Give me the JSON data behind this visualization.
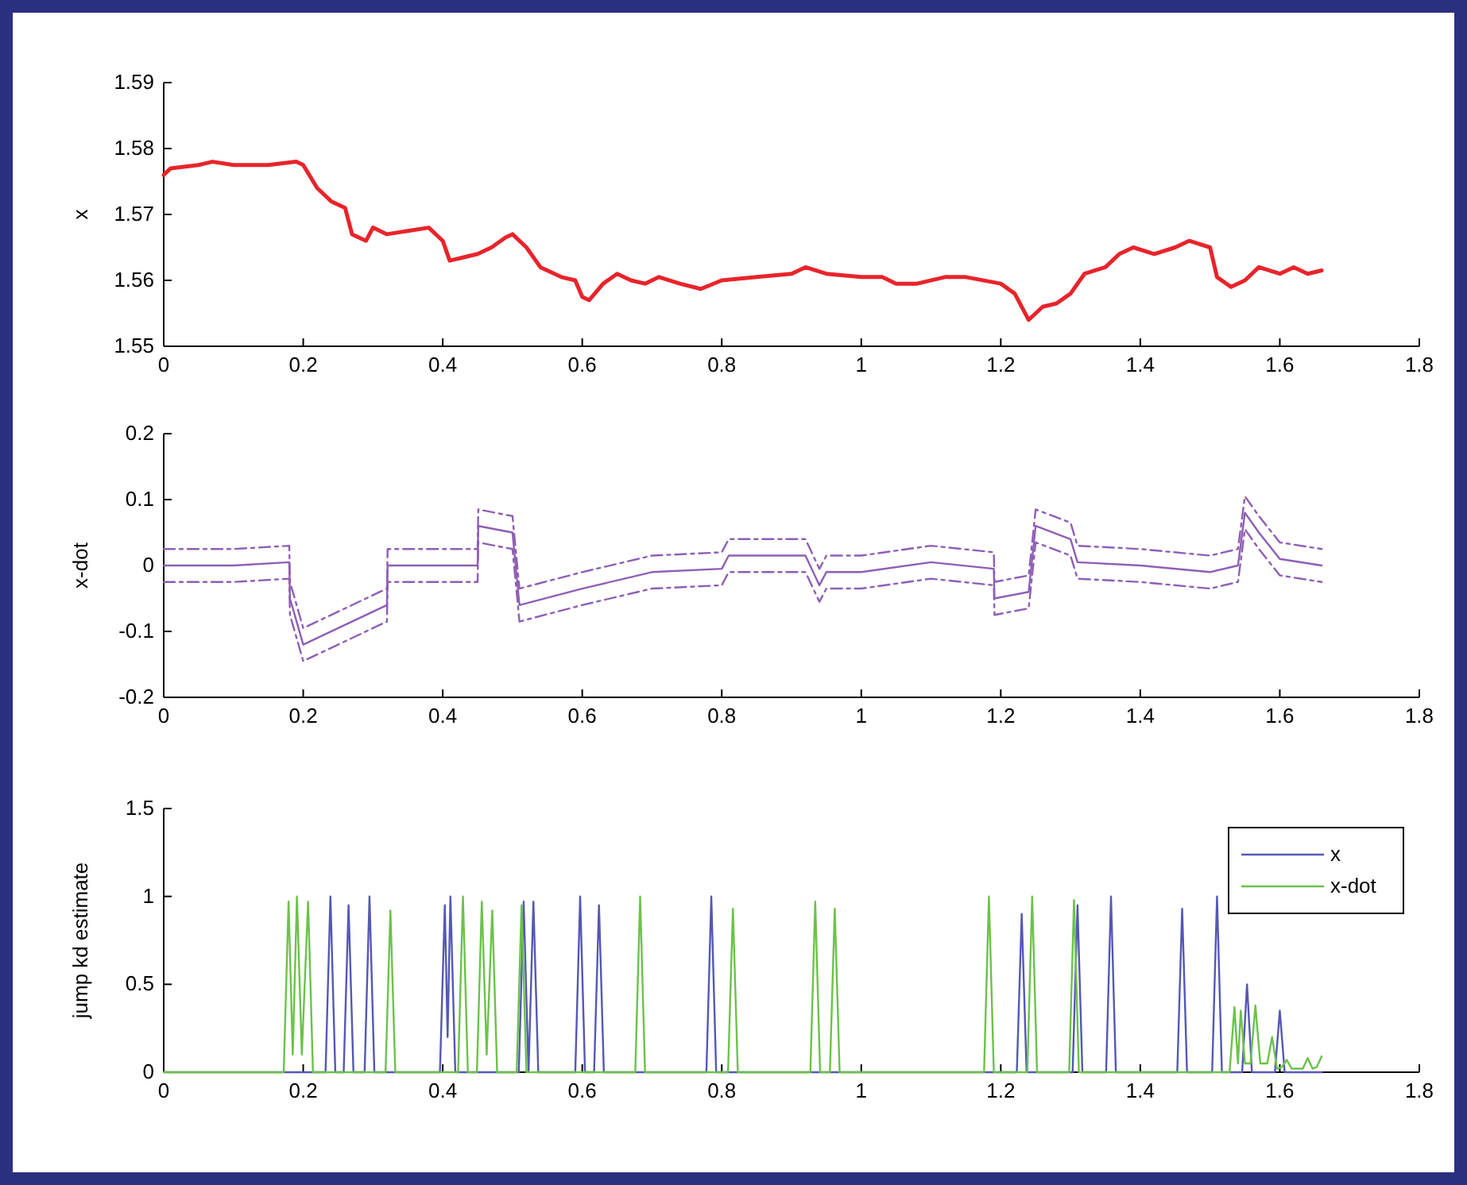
{
  "chart_data": [
    {
      "type": "line",
      "ylabel": "x",
      "xlim": [
        0,
        1.8
      ],
      "xticks": [
        0,
        0.2,
        0.4,
        0.6,
        0.8,
        1,
        1.2,
        1.4,
        1.6,
        1.8
      ],
      "ylim": [
        1.55,
        1.59
      ],
      "yticks": [
        1.55,
        1.56,
        1.57,
        1.58,
        1.59
      ],
      "x": [
        0,
        0.01,
        0.05,
        0.07,
        0.1,
        0.15,
        0.19,
        0.2,
        0.22,
        0.24,
        0.26,
        0.27,
        0.29,
        0.3,
        0.32,
        0.35,
        0.38,
        0.4,
        0.41,
        0.43,
        0.45,
        0.47,
        0.49,
        0.5,
        0.52,
        0.54,
        0.57,
        0.59,
        0.6,
        0.61,
        0.63,
        0.65,
        0.67,
        0.69,
        0.71,
        0.74,
        0.77,
        0.8,
        0.85,
        0.9,
        0.92,
        0.95,
        1.0,
        1.03,
        1.05,
        1.08,
        1.12,
        1.15,
        1.2,
        1.22,
        1.24,
        1.26,
        1.28,
        1.3,
        1.32,
        1.35,
        1.37,
        1.39,
        1.42,
        1.45,
        1.47,
        1.5,
        1.51,
        1.53,
        1.55,
        1.57,
        1.6,
        1.62,
        1.64,
        1.66
      ],
      "series": [
        {
          "color": "#e8242b",
          "values": [
            1.576,
            1.577,
            1.5775,
            1.578,
            1.5775,
            1.5775,
            1.578,
            1.5775,
            1.574,
            1.572,
            1.571,
            1.567,
            1.566,
            1.568,
            1.567,
            1.5675,
            1.568,
            1.566,
            1.563,
            1.5635,
            1.564,
            1.565,
            1.5665,
            1.567,
            1.565,
            1.562,
            1.5605,
            1.56,
            1.5575,
            1.557,
            1.5595,
            1.561,
            1.56,
            1.5595,
            1.5605,
            1.5595,
            1.5587,
            1.56,
            1.5605,
            1.561,
            1.562,
            1.561,
            1.5605,
            1.5605,
            1.5595,
            1.5595,
            1.5605,
            1.5605,
            1.5595,
            1.558,
            1.554,
            1.556,
            1.5565,
            1.558,
            1.561,
            1.562,
            1.564,
            1.565,
            1.564,
            1.565,
            1.566,
            1.565,
            1.5605,
            1.559,
            1.56,
            1.562,
            1.561,
            1.562,
            1.561,
            1.5615
          ]
        }
      ]
    },
    {
      "type": "line",
      "ylabel": "x-dot",
      "xlim": [
        0,
        1.8
      ],
      "xticks": [
        0,
        0.2,
        0.4,
        0.6,
        0.8,
        1,
        1.2,
        1.4,
        1.6,
        1.8
      ],
      "ylim": [
        -0.2,
        0.2
      ],
      "yticks": [
        -0.2,
        -0.1,
        0,
        0.1,
        0.2
      ],
      "x": [
        0,
        0.1,
        0.18,
        0.181,
        0.2,
        0.25,
        0.32,
        0.321,
        0.45,
        0.451,
        0.5,
        0.51,
        0.6,
        0.7,
        0.8,
        0.81,
        0.92,
        0.94,
        0.95,
        1.0,
        1.1,
        1.19,
        1.191,
        1.24,
        1.25,
        1.3,
        1.31,
        1.4,
        1.5,
        1.54,
        1.55,
        1.57,
        1.6,
        1.66
      ],
      "series": [
        {
          "color": "#8e5fb5",
          "line_style": "solid",
          "values": [
            0,
            0,
            0.005,
            -0.05,
            -0.12,
            -0.095,
            -0.06,
            0,
            0,
            0.06,
            0.05,
            -0.06,
            -0.035,
            -0.01,
            -0.005,
            0.015,
            0.015,
            -0.03,
            -0.01,
            -0.01,
            0.005,
            -0.005,
            -0.05,
            -0.04,
            0.06,
            0.04,
            0.005,
            0,
            -0.01,
            0,
            0.08,
            0.05,
            0.01,
            0
          ]
        },
        {
          "color": "#8e5fb5",
          "line_style": "dashed",
          "values": [
            0.025,
            0.025,
            0.03,
            -0.025,
            -0.095,
            -0.07,
            -0.035,
            0.025,
            0.025,
            0.085,
            0.075,
            -0.035,
            -0.01,
            0.015,
            0.02,
            0.04,
            0.04,
            -0.005,
            0.015,
            0.015,
            0.03,
            0.02,
            -0.025,
            -0.015,
            0.085,
            0.065,
            0.03,
            0.025,
            0.015,
            0.025,
            0.105,
            0.075,
            0.035,
            0.025
          ]
        },
        {
          "color": "#8e5fb5",
          "line_style": "dashed",
          "values": [
            -0.025,
            -0.025,
            -0.02,
            -0.075,
            -0.145,
            -0.12,
            -0.085,
            -0.025,
            -0.025,
            0.035,
            0.025,
            -0.085,
            -0.06,
            -0.035,
            -0.03,
            -0.01,
            -0.01,
            -0.055,
            -0.035,
            -0.035,
            -0.02,
            -0.03,
            -0.075,
            -0.065,
            0.035,
            0.015,
            -0.02,
            -0.025,
            -0.035,
            -0.025,
            0.055,
            0.025,
            -0.015,
            -0.025
          ]
        }
      ]
    },
    {
      "type": "line",
      "ylabel": "jump kd estimate",
      "xlim": [
        0,
        1.8
      ],
      "xticks": [
        0,
        0.2,
        0.4,
        0.6,
        0.8,
        1,
        1.2,
        1.4,
        1.6,
        1.8
      ],
      "ylim": [
        0,
        1.5
      ],
      "yticks": [
        0,
        0.5,
        1,
        1.5
      ],
      "legend": "top right",
      "series": [
        {
          "name": "x",
          "color": "#5558b5",
          "x": [
            0,
            0.232,
            0.239,
            0.246,
            0.258,
            0.265,
            0.272,
            0.288,
            0.295,
            0.302,
            0.396,
            0.403,
            0.407,
            0.411,
            0.418,
            0.509,
            0.516,
            0.523,
            0.53,
            0.537,
            0.59,
            0.597,
            0.604,
            0.617,
            0.624,
            0.631,
            0.778,
            0.785,
            0.792,
            1.223,
            1.23,
            1.237,
            1.303,
            1.31,
            1.317,
            1.351,
            1.358,
            1.365,
            1.453,
            1.46,
            1.467,
            1.503,
            1.51,
            1.517,
            1.546,
            1.553,
            1.56,
            1.593,
            1.6,
            1.607,
            1.66
          ],
          "values": [
            0,
            0,
            1,
            0,
            0,
            0.95,
            0,
            0,
            1,
            0,
            0,
            0.95,
            0.2,
            1,
            0,
            0,
            0.97,
            0,
            0.97,
            0,
            0,
            1,
            0,
            0,
            0.95,
            0,
            0,
            1,
            0,
            0,
            0.9,
            0,
            0,
            0.95,
            0,
            0,
            1,
            0,
            0,
            0.93,
            0,
            0,
            1,
            0,
            0,
            0.5,
            0,
            0,
            0.35,
            0,
            0
          ]
        },
        {
          "name": "x-dot",
          "color": "#6cc24a",
          "x": [
            0,
            0.172,
            0.179,
            0.185,
            0.191,
            0.198,
            0.207,
            0.214,
            0.318,
            0.325,
            0.332,
            0.422,
            0.429,
            0.436,
            0.449,
            0.456,
            0.463,
            0.471,
            0.478,
            0.506,
            0.513,
            0.52,
            0.676,
            0.683,
            0.69,
            0.809,
            0.816,
            0.823,
            0.927,
            0.934,
            0.941,
            0.955,
            0.962,
            0.969,
            1.176,
            1.183,
            1.19,
            1.238,
            1.245,
            1.252,
            1.298,
            1.305,
            1.312,
            1.528,
            1.535,
            1.54,
            1.544,
            1.55,
            1.558,
            1.565,
            1.572,
            1.582,
            1.589,
            1.596,
            1.603,
            1.61,
            1.617,
            1.633,
            1.64,
            1.647,
            1.653,
            1.66
          ],
          "values": [
            0,
            0,
            0.97,
            0.1,
            1,
            0.1,
            0.97,
            0,
            0,
            0.92,
            0,
            0,
            1,
            0,
            0,
            0.97,
            0.1,
            0.92,
            0,
            0,
            0.95,
            0,
            0,
            1,
            0,
            0,
            0.93,
            0,
            0,
            0.97,
            0,
            0,
            0.93,
            0,
            0,
            1,
            0,
            0,
            1,
            0,
            0,
            0.98,
            0,
            0,
            0.37,
            0.05,
            0.35,
            0.05,
            0.05,
            0.38,
            0.05,
            0.05,
            0.2,
            0.02,
            0.03,
            0.07,
            0.02,
            0.02,
            0.08,
            0.02,
            0.03,
            0.09
          ]
        }
      ]
    }
  ]
}
